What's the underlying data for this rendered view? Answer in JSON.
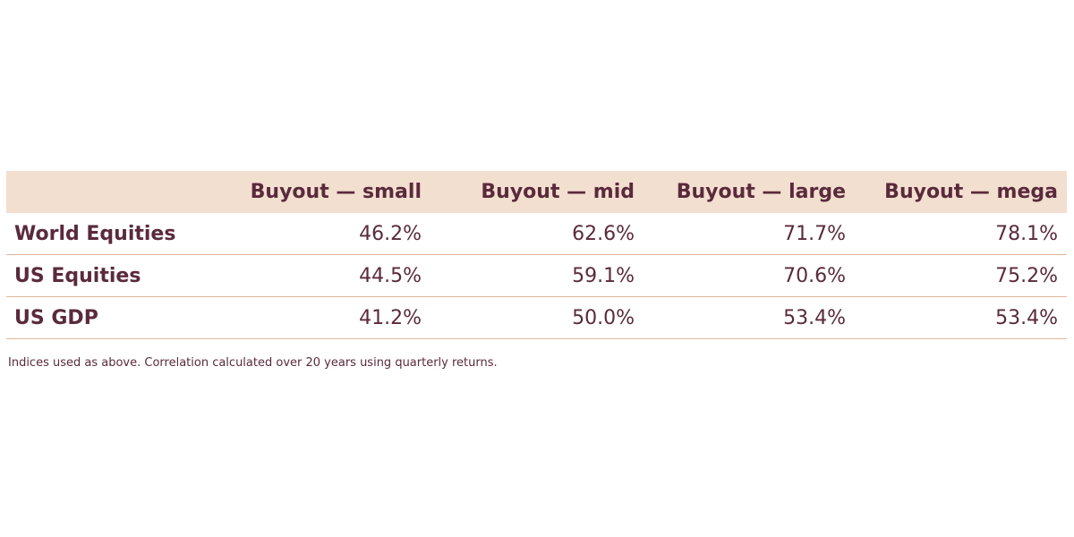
{
  "table": {
    "columns": [
      "Buyout — small",
      "Buyout — mid",
      "Buyout — large",
      "Buyout — mega"
    ],
    "rows": [
      {
        "label": "World Equities",
        "values": [
          "46.2%",
          "62.6%",
          "71.7%",
          "78.1%"
        ]
      },
      {
        "label": "US Equities",
        "values": [
          "44.5%",
          "59.1%",
          "70.6%",
          "75.2%"
        ]
      },
      {
        "label": "US GDP",
        "values": [
          "41.2%",
          "50.0%",
          "53.4%",
          "53.4%"
        ]
      }
    ]
  },
  "footnote": "Indices used as above. Correlation calculated over 20 years using quarterly returns.",
  "colors": {
    "header_bg": "#f2dfcf",
    "text": "#5a2a3c",
    "rule": "#e0b79a"
  }
}
